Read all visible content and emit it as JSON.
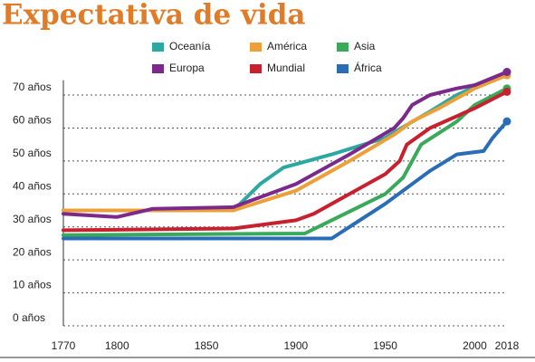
{
  "chart_data": {
    "type": "line",
    "title": "Expectativa de vida",
    "xlim": [
      1770,
      2018
    ],
    "xticks": [
      1770,
      1800,
      1850,
      1900,
      1950,
      2000,
      2018
    ],
    "ylim": [
      0,
      80
    ],
    "yticks": [
      {
        "value": 0,
        "label": "0 años"
      },
      {
        "value": 10,
        "label": "10 años"
      },
      {
        "value": 20,
        "label": "20 años"
      },
      {
        "value": 30,
        "label": "30 años"
      },
      {
        "value": 40,
        "label": "40 años"
      },
      {
        "value": 50,
        "label": "50 años"
      },
      {
        "value": 60,
        "label": "60 años"
      },
      {
        "value": 70,
        "label": "70 años"
      }
    ],
    "grid": true,
    "series": [
      {
        "name": "Oceanía",
        "color": "#2ba89f",
        "x": [
          1770,
          1865,
          1880,
          1893,
          1920,
          1950,
          1959,
          1975,
          1990,
          2018
        ],
        "values": [
          35,
          35,
          43,
          48,
          52,
          57,
          60,
          65,
          70,
          77
        ]
      },
      {
        "name": "América",
        "color": "#eda03a",
        "x": [
          1770,
          1865,
          1900,
          1930,
          1955,
          1965,
          1980,
          2000,
          2018
        ],
        "values": [
          35,
          35,
          41,
          50,
          58,
          62,
          66,
          72,
          76
        ]
      },
      {
        "name": "Asia",
        "color": "#3aa95a",
        "x": [
          1770,
          1905,
          1950,
          1960,
          1970,
          1990,
          2000,
          2018
        ],
        "values": [
          27.5,
          28,
          40,
          45,
          55,
          62,
          67,
          72
        ]
      },
      {
        "name": "Europa",
        "color": "#7b2a8c",
        "x": [
          1770,
          1800,
          1820,
          1865,
          1900,
          1930,
          1955,
          1960,
          1965,
          1975,
          1990,
          2000,
          2018
        ],
        "values": [
          34,
          33,
          35.5,
          36,
          43,
          52,
          60,
          63,
          67,
          70,
          72,
          73,
          77
        ]
      },
      {
        "name": "Mundial",
        "color": "#c8202e",
        "x": [
          1770,
          1865,
          1900,
          1910,
          1950,
          1958,
          1962,
          1975,
          2000,
          2018
        ],
        "values": [
          29,
          29.5,
          32,
          34,
          46,
          50,
          55,
          60,
          66,
          71
        ]
      },
      {
        "name": "África",
        "color": "#2a6db5",
        "x": [
          1770,
          1920,
          1950,
          1975,
          1990,
          2005,
          2010,
          2018
        ],
        "values": [
          26.5,
          26.5,
          37,
          47,
          52,
          53,
          57,
          62
        ]
      }
    ]
  }
}
